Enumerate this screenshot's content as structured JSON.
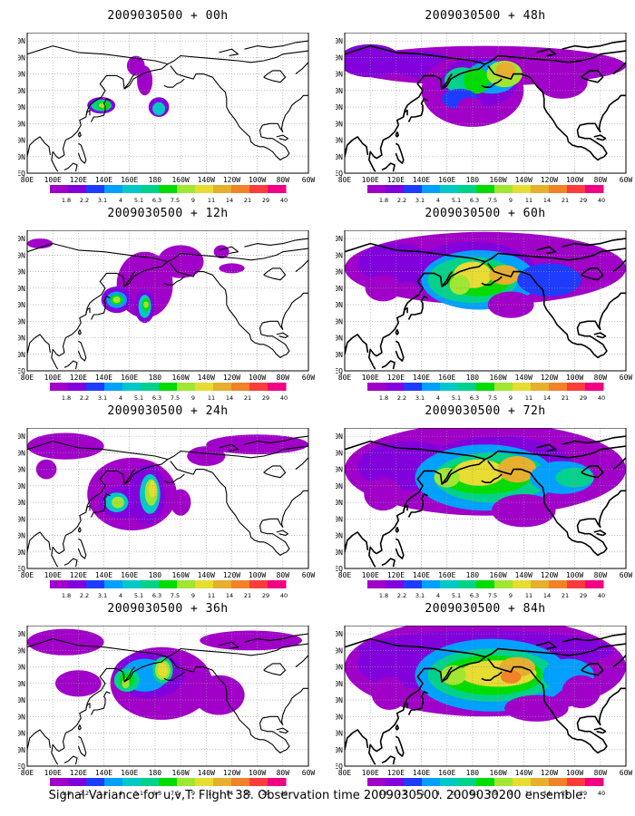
{
  "panels": [
    {
      "title": "2009030500 + 00h",
      "level": 0
    },
    {
      "title": "2009030500 + 12h",
      "level": 1
    },
    {
      "title": "2009030500 + 24h",
      "level": 2
    },
    {
      "title": "2009030500 + 36h",
      "level": 3
    },
    {
      "title": "2009030500 + 48h",
      "level": 4
    },
    {
      "title": "2009030500 + 60h",
      "level": 5
    },
    {
      "title": "2009030500 + 72h",
      "level": 6
    },
    {
      "title": "2009030500 + 84h",
      "level": 7
    }
  ],
  "lat_labels": [
    "80N",
    "70N",
    "60N",
    "50N",
    "40N",
    "30N",
    "20N",
    "10N",
    "EQ"
  ],
  "lon_labels": [
    "80E",
    "100E",
    "120E",
    "140E",
    "160E",
    "180",
    "160W",
    "140W",
    "120W",
    "100W",
    "80W",
    "60W"
  ],
  "colorbar": {
    "labels": [
      "1.8",
      "2.2",
      "3.1",
      "4",
      "5.1",
      "6.3",
      "7.5",
      "9",
      "11",
      "14",
      "21",
      "29",
      "40"
    ],
    "colors": [
      "#a000c8",
      "#8200dc",
      "#1e3cff",
      "#00a0ff",
      "#00c8c8",
      "#00d28c",
      "#00dc00",
      "#a0e632",
      "#e6dc32",
      "#e6af2d",
      "#f08228",
      "#fa3c3c",
      "#f00082"
    ]
  },
  "caption": "Signal Variance for u,v,T. Flight 38. Observation time 2009030500. 2009030200 ensemble."
}
